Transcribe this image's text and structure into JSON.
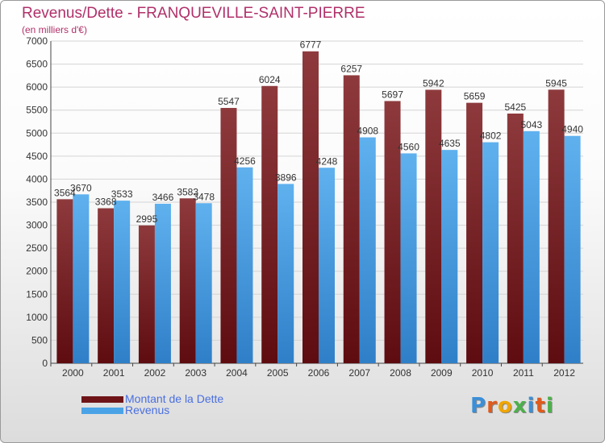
{
  "header": {
    "title": "Revenus/Dette - FRANQUEVILLE-SAINT-PIERRE",
    "subtitle": "(en milliers d'€)"
  },
  "logo": {
    "text": "Proxiti"
  },
  "colors": {
    "dette": "#7b1c1f",
    "dette_light": "#8e3a3d",
    "revenus": "#4aa3e6",
    "revenus_light": "#5fb1ee",
    "title": "#b0306a",
    "legend_text": "#4a6fe0"
  },
  "chart_data": {
    "type": "bar",
    "title": "Revenus/Dette - FRANQUEVILLE-SAINT-PIERRE",
    "ylabel": "(en milliers d'€)",
    "xlabel": "",
    "ylim": [
      0,
      7000
    ],
    "yticks": [
      0,
      500,
      1000,
      1500,
      2000,
      2500,
      3000,
      3500,
      4000,
      4500,
      5000,
      5500,
      6000,
      6500,
      7000
    ],
    "grid": true,
    "legend_position": "bottom-left",
    "categories": [
      "2000",
      "2001",
      "2002",
      "2003",
      "2004",
      "2005",
      "2006",
      "2007",
      "2008",
      "2009",
      "2010",
      "2011",
      "2012"
    ],
    "series": [
      {
        "name": "Montant de la Dette",
        "values": [
          3564,
          3368,
          2995,
          3583,
          5547,
          6024,
          6777,
          6257,
          5697,
          5942,
          5659,
          5425,
          5945
        ]
      },
      {
        "name": "Revenus",
        "values": [
          3670,
          3533,
          3466,
          3478,
          4256,
          3896,
          4248,
          4908,
          4560,
          4635,
          4802,
          5043,
          4940
        ]
      }
    ]
  }
}
